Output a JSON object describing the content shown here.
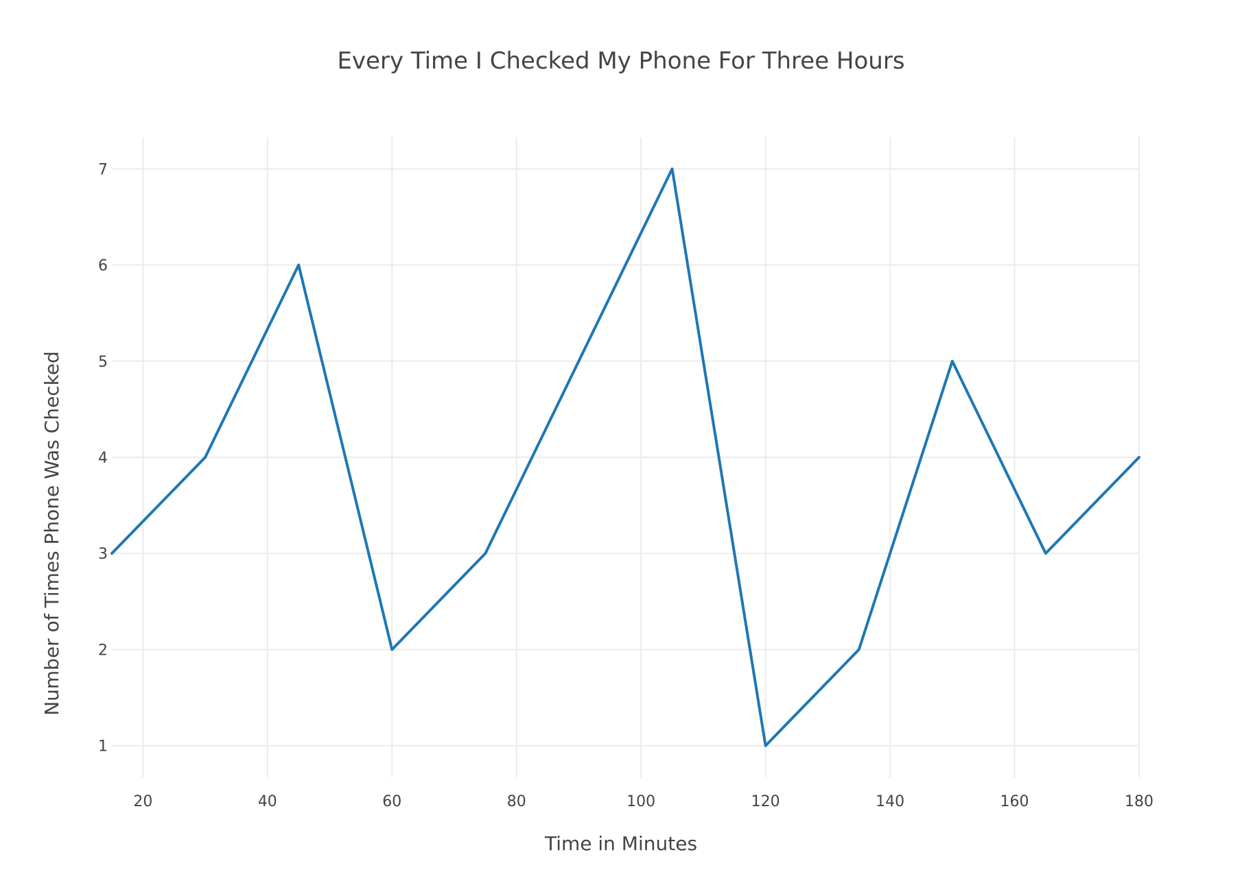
{
  "chart_data": {
    "type": "line",
    "title": "Every Time I Checked My Phone For Three Hours",
    "xlabel": "Time in Minutes",
    "ylabel": "Number of Times Phone Was Checked",
    "x": [
      15,
      30,
      45,
      60,
      75,
      90,
      105,
      120,
      135,
      150,
      165,
      180
    ],
    "series": [
      {
        "values": [
          3,
          4,
          6,
          2,
          3,
          5,
          7,
          1,
          2,
          5,
          3,
          4
        ],
        "color": "#1f77b4"
      }
    ],
    "xlim": [
      15,
      180
    ],
    "ylim": [
      0.67,
      7.33
    ],
    "x_ticks": [
      20,
      40,
      60,
      80,
      100,
      120,
      140,
      160,
      180
    ],
    "y_ticks": [
      1,
      2,
      3,
      4,
      5,
      6,
      7
    ],
    "grid": true,
    "legend": "none"
  }
}
